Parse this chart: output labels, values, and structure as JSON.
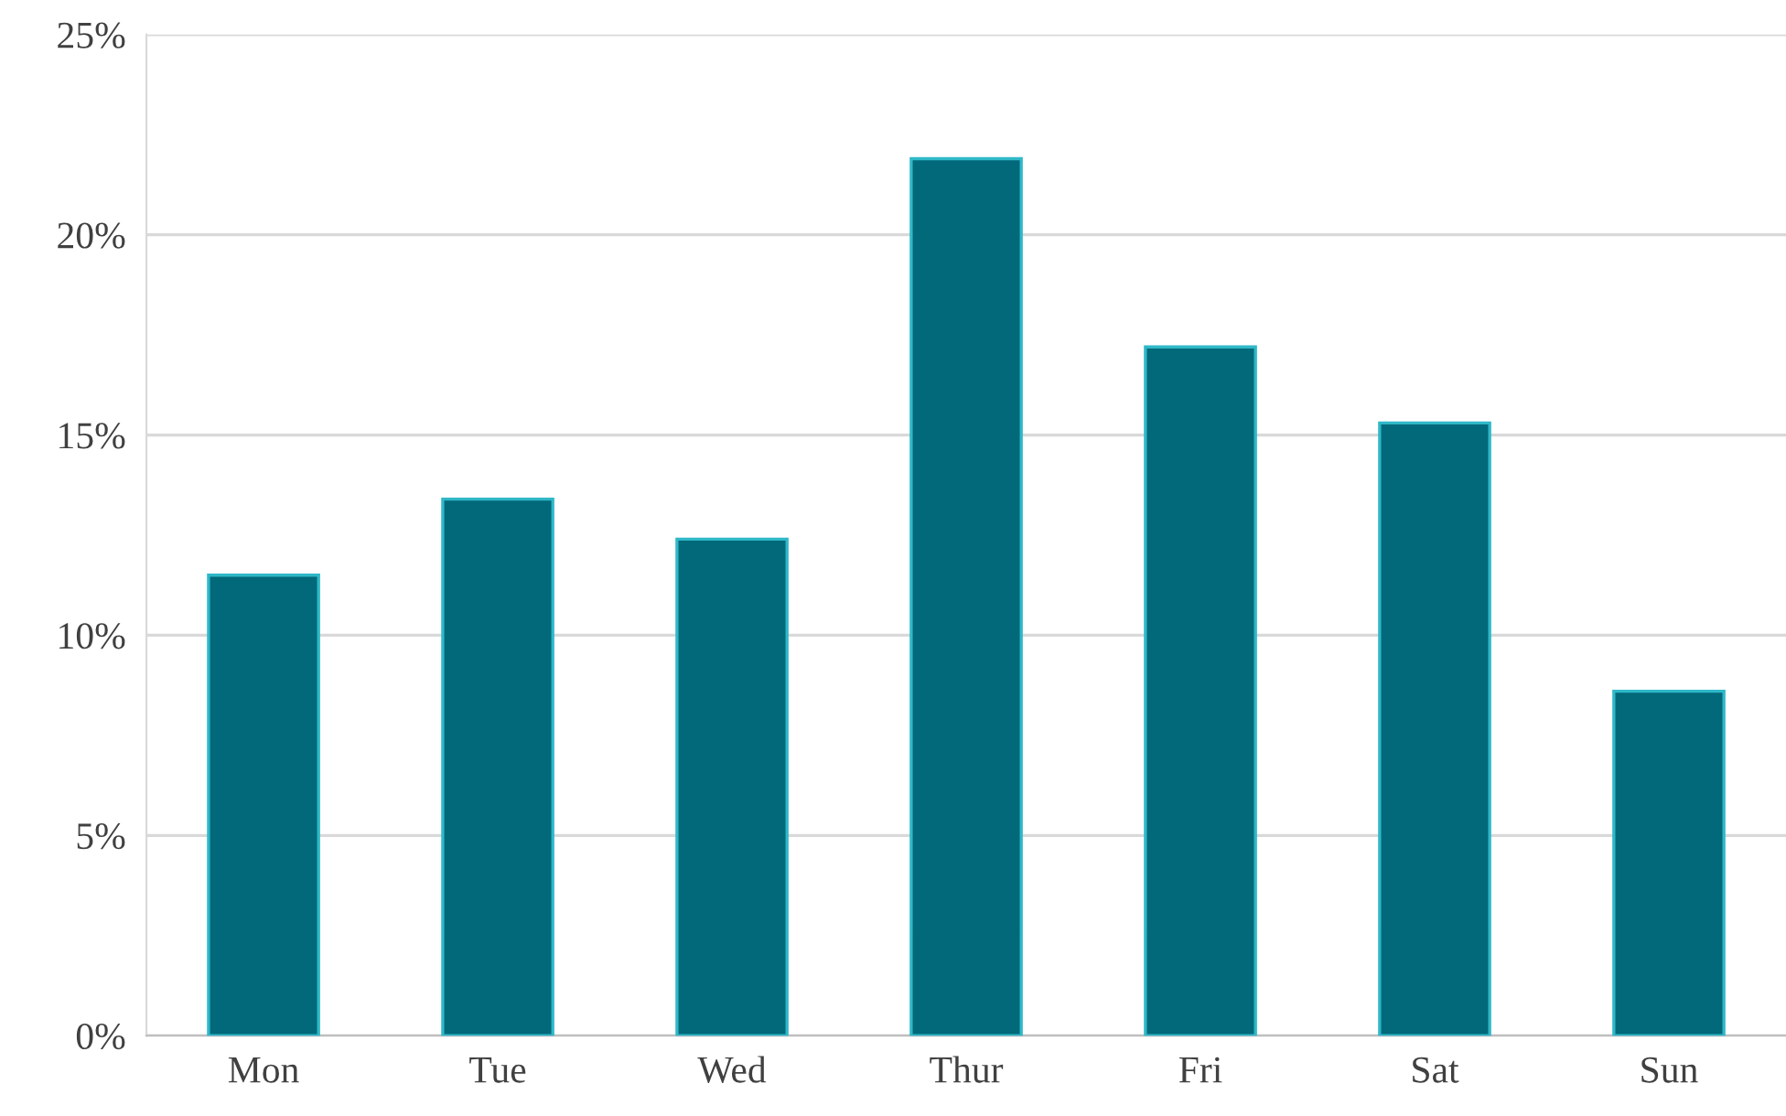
{
  "chart_data": {
    "type": "bar",
    "categories": [
      "Mon",
      "Tue",
      "Wed",
      "Thur",
      "Fri",
      "Sat",
      "Sun"
    ],
    "values": [
      11.5,
      13.4,
      12.4,
      21.9,
      17.2,
      15.3,
      8.6
    ],
    "color": "#02697a",
    "ylim": [
      0,
      25
    ],
    "yticks": [
      {
        "value": 0,
        "label": "0%"
      },
      {
        "value": 5,
        "label": "5%"
      },
      {
        "value": 10,
        "label": "10%"
      },
      {
        "value": 15,
        "label": "15%"
      },
      {
        "value": 20,
        "label": "20%"
      },
      {
        "value": 25,
        "label": "25%"
      }
    ],
    "grid": "y",
    "legend": false
  }
}
